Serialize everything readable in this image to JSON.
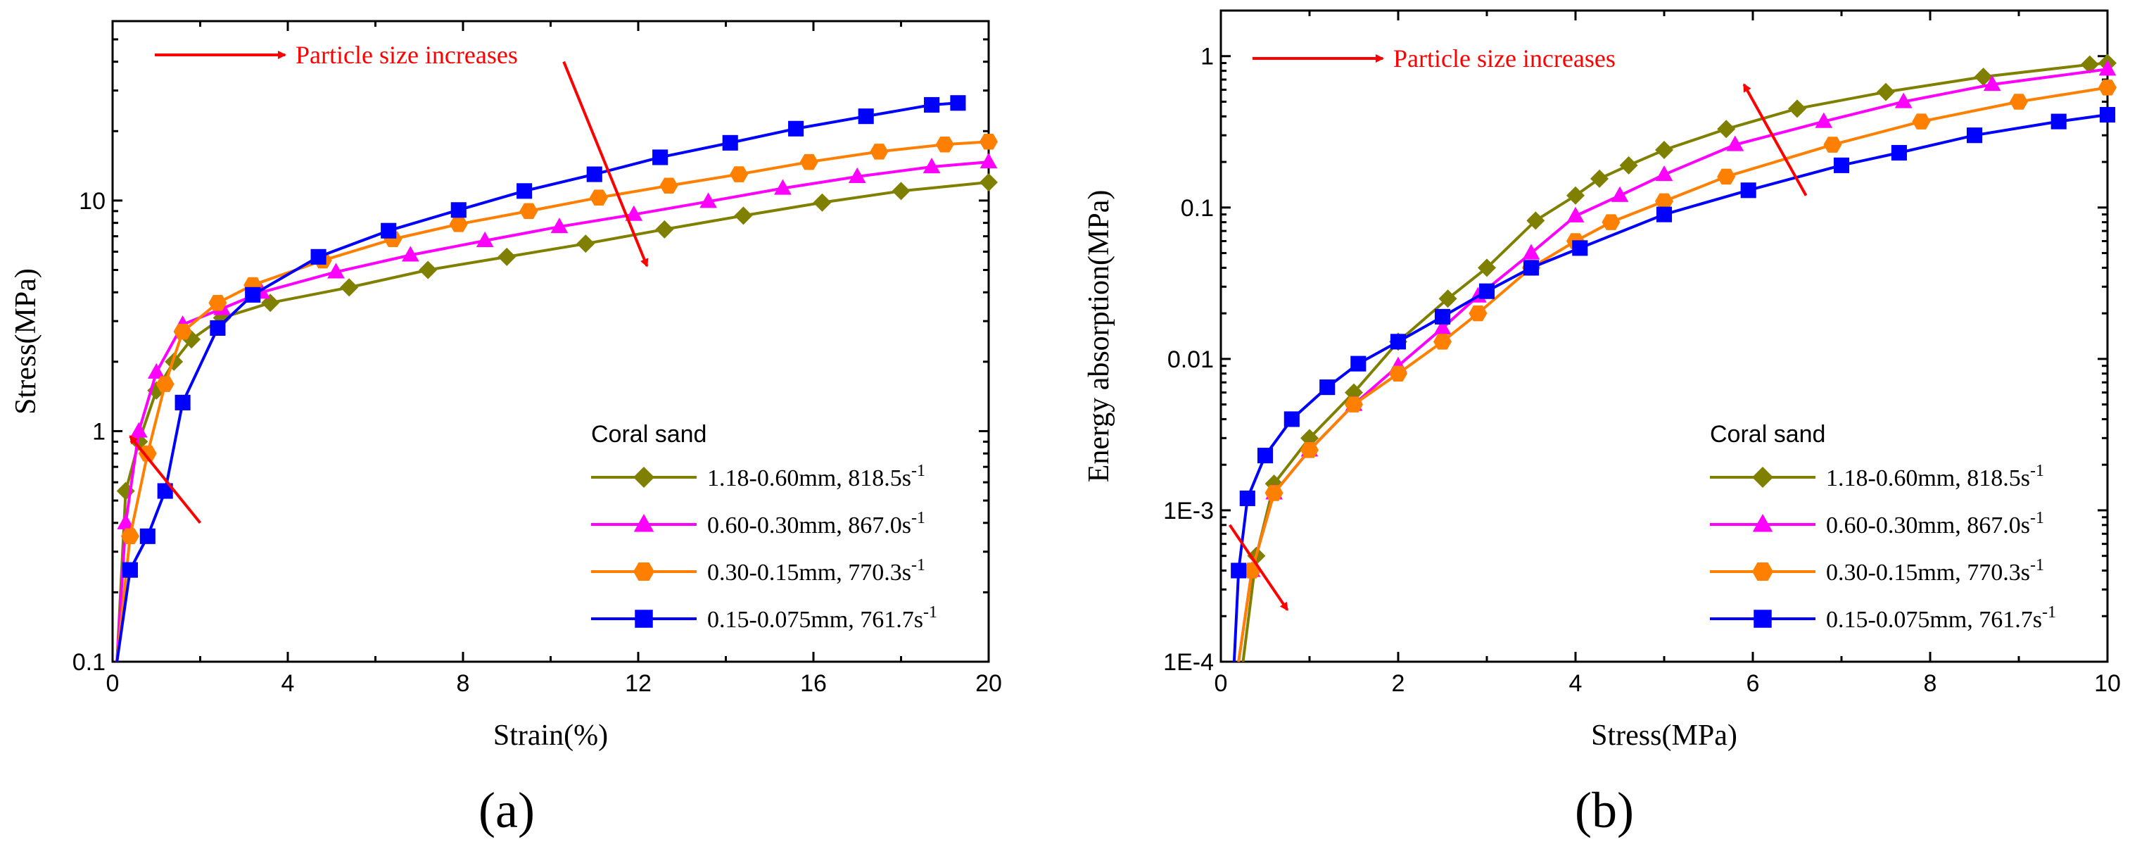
{
  "chart_data": [
    {
      "panel": "(a)",
      "type": "line",
      "xlabel": "Strain(%)",
      "ylabel": "Stress(MPa)",
      "xlim": [
        0,
        20
      ],
      "ylim": [
        0.1,
        60
      ],
      "yscale": "log",
      "xticks": [
        "0",
        "4",
        "8",
        "12",
        "16",
        "20"
      ],
      "yticks": [
        "0.1",
        "1",
        "10"
      ],
      "annotation": "Particle size increases",
      "legend_title": "Coral sand",
      "legend_position": "bottom-right",
      "series": [
        {
          "name": "1.18-0.60mm,  818.5s",
          "rate_exp": "-1",
          "color": "#808000",
          "marker": "diamond",
          "x": [
            0.1,
            0.3,
            0.6,
            1.0,
            1.4,
            1.8,
            2.5,
            3.6,
            5.4,
            7.2,
            9.0,
            10.8,
            12.6,
            14.4,
            16.2,
            18.0,
            20.0
          ],
          "y": [
            0.1,
            0.55,
            0.9,
            1.5,
            2.0,
            2.5,
            3.1,
            3.6,
            4.2,
            5.0,
            5.7,
            6.5,
            7.5,
            8.6,
            9.8,
            11.0,
            12.0
          ]
        },
        {
          "name": "0.60-0.30mm,  867.0s",
          "rate_exp": "-1",
          "color": "#ff00ff",
          "marker": "triangle",
          "x": [
            0.1,
            0.3,
            0.6,
            1.0,
            1.6,
            2.5,
            3.4,
            5.1,
            6.8,
            8.5,
            10.2,
            11.9,
            13.6,
            15.3,
            17.0,
            18.7,
            20.0
          ],
          "y": [
            0.1,
            0.4,
            1.0,
            1.8,
            2.9,
            3.4,
            4.0,
            4.9,
            5.8,
            6.7,
            7.7,
            8.7,
            9.9,
            11.3,
            12.7,
            14.0,
            14.7
          ]
        },
        {
          "name": "0.30-0.15mm,  770.3s",
          "rate_exp": "-1",
          "color": "#ff8000",
          "marker": "hexagon",
          "x": [
            0.1,
            0.4,
            0.8,
            1.2,
            1.6,
            2.4,
            3.2,
            4.8,
            6.4,
            7.9,
            9.5,
            11.1,
            12.7,
            14.3,
            15.9,
            17.5,
            19.0,
            20.0
          ],
          "y": [
            0.1,
            0.35,
            0.8,
            1.6,
            2.7,
            3.6,
            4.3,
            5.5,
            6.8,
            7.9,
            9.0,
            10.3,
            11.6,
            13.0,
            14.7,
            16.3,
            17.5,
            18.0
          ]
        },
        {
          "name": "0.15-0.075mm, 761.7s",
          "rate_exp": "-1",
          "color": "#0000ff",
          "marker": "square",
          "x": [
            0.1,
            0.4,
            0.8,
            1.2,
            1.6,
            2.4,
            3.2,
            4.7,
            6.3,
            7.9,
            9.4,
            11.0,
            12.5,
            14.1,
            15.6,
            17.2,
            18.7,
            19.3
          ],
          "y": [
            0.1,
            0.25,
            0.35,
            0.55,
            1.33,
            2.8,
            3.9,
            5.7,
            7.4,
            9.1,
            11.0,
            13.0,
            15.4,
            17.8,
            20.5,
            23.2,
            26.0,
            26.5
          ]
        }
      ],
      "arrows": [
        {
          "from": [
            2.0,
            0.4
          ],
          "to": [
            0.4,
            0.95
          ]
        },
        {
          "from": [
            10.3,
            40
          ],
          "to": [
            12.2,
            5.2
          ]
        }
      ]
    },
    {
      "panel": "(b)",
      "type": "line",
      "xlabel": "Stress(MPa)",
      "ylabel": "Energy absorption(MPa)",
      "xlim": [
        0,
        10
      ],
      "ylim": [
        0.0001,
        2.0
      ],
      "yscale": "log",
      "xticks": [
        "0",
        "2",
        "4",
        "6",
        "8",
        "10"
      ],
      "yticks": [
        "1E-4",
        "1E-3",
        "0.01",
        "0.1",
        "1"
      ],
      "annotation": "Particle size increases",
      "legend_title": "Coral sand",
      "legend_position": "bottom-right",
      "series": [
        {
          "name": "1.18-0.60mm,  818.5s",
          "rate_exp": "-1",
          "color": "#808000",
          "marker": "diamond",
          "x": [
            0.25,
            0.4,
            0.6,
            1.0,
            1.5,
            2.0,
            2.56,
            3.0,
            3.55,
            4.0,
            4.27,
            4.6,
            5.0,
            5.7,
            6.5,
            7.5,
            8.6,
            9.8,
            10.0
          ],
          "y": [
            0.0001,
            0.0005,
            0.0015,
            0.003,
            0.006,
            0.013,
            0.025,
            0.04,
            0.082,
            0.12,
            0.155,
            0.19,
            0.24,
            0.33,
            0.45,
            0.58,
            0.73,
            0.88,
            0.9
          ]
        },
        {
          "name": "0.60-0.30mm,  867.0s",
          "rate_exp": "-1",
          "color": "#ff00ff",
          "marker": "triangle",
          "x": [
            0.2,
            0.35,
            0.6,
            1.0,
            1.5,
            2.0,
            2.5,
            2.9,
            3.5,
            4.0,
            4.5,
            5.0,
            5.8,
            6.8,
            7.7,
            8.7,
            10.0
          ],
          "y": [
            0.0001,
            0.0004,
            0.0013,
            0.0025,
            0.005,
            0.009,
            0.016,
            0.026,
            0.05,
            0.088,
            0.12,
            0.165,
            0.26,
            0.37,
            0.5,
            0.65,
            0.82
          ]
        },
        {
          "name": "0.30-0.15mm,  770.3s",
          "rate_exp": "-1",
          "color": "#ff8000",
          "marker": "hexagon",
          "x": [
            0.2,
            0.35,
            0.6,
            1.0,
            1.5,
            2.0,
            2.5,
            2.9,
            3.5,
            4.0,
            4.4,
            5.0,
            5.7,
            6.9,
            7.9,
            9.0,
            10.0
          ],
          "y": [
            0.0001,
            0.0004,
            0.0013,
            0.0025,
            0.005,
            0.008,
            0.013,
            0.02,
            0.04,
            0.06,
            0.08,
            0.11,
            0.16,
            0.26,
            0.37,
            0.5,
            0.62
          ]
        },
        {
          "name": "0.15-0.075mm, 761.7s",
          "rate_exp": "-1",
          "color": "#0000ff",
          "marker": "square",
          "x": [
            0.15,
            0.2,
            0.3,
            0.5,
            0.8,
            1.2,
            1.55,
            2.0,
            2.5,
            3.0,
            3.5,
            4.05,
            5.0,
            5.95,
            7.0,
            7.65,
            8.5,
            9.45,
            10.0
          ],
          "y": [
            0.0001,
            0.0004,
            0.0012,
            0.0023,
            0.004,
            0.0065,
            0.0093,
            0.013,
            0.019,
            0.028,
            0.04,
            0.054,
            0.09,
            0.13,
            0.19,
            0.23,
            0.3,
            0.37,
            0.41
          ]
        }
      ],
      "arrows": [
        {
          "from": [
            6.6,
            0.12
          ],
          "to": [
            5.9,
            0.65
          ]
        },
        {
          "from": [
            0.1,
            0.0008
          ],
          "to": [
            0.75,
            0.00022
          ]
        }
      ]
    }
  ],
  "colors": {
    "arrow": "#ff0000",
    "axis": "#000000"
  }
}
